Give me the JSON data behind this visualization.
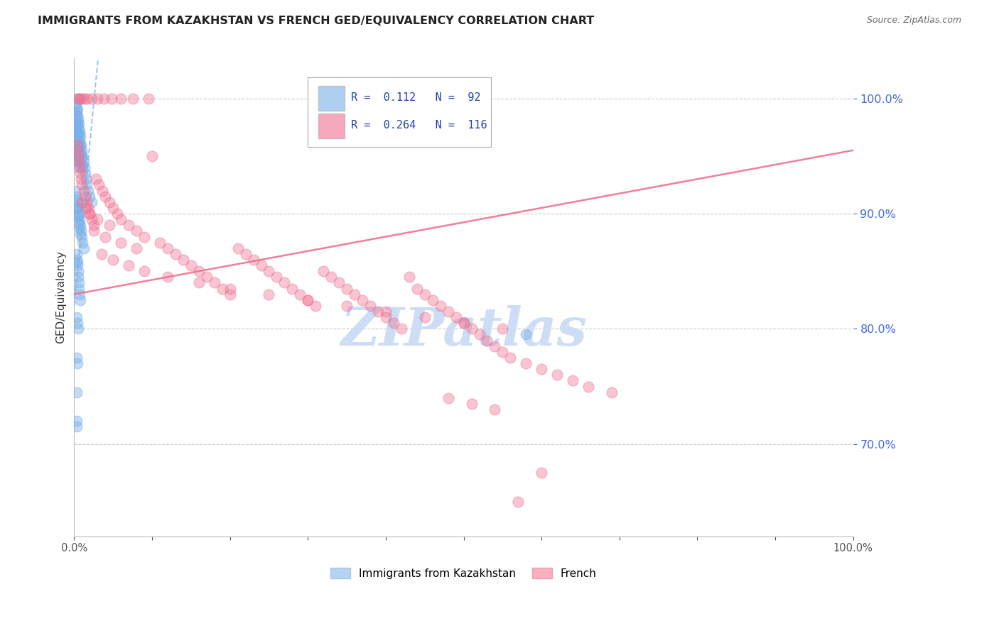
{
  "title": "IMMIGRANTS FROM KAZAKHSTAN VS FRENCH GED/EQUIVALENCY CORRELATION CHART",
  "source": "Source: ZipAtlas.com",
  "ylabel": "GED/Equivalency",
  "right_yticks": [
    100.0,
    90.0,
    80.0,
    70.0
  ],
  "legend_entries": [
    {
      "label": "Immigrants from Kazakhstan",
      "R": 0.112,
      "N": 92,
      "color": "#7ab0e8"
    },
    {
      "label": "French",
      "R": 0.264,
      "N": 116,
      "color": "#f07090"
    }
  ],
  "blue_scatter_x": [
    0.002,
    0.002,
    0.002,
    0.002,
    0.003,
    0.003,
    0.003,
    0.003,
    0.003,
    0.003,
    0.003,
    0.003,
    0.004,
    0.004,
    0.004,
    0.004,
    0.004,
    0.004,
    0.004,
    0.005,
    0.005,
    0.005,
    0.005,
    0.005,
    0.005,
    0.006,
    0.006,
    0.006,
    0.006,
    0.006,
    0.006,
    0.007,
    0.007,
    0.007,
    0.007,
    0.008,
    0.008,
    0.008,
    0.008,
    0.009,
    0.009,
    0.01,
    0.01,
    0.01,
    0.011,
    0.011,
    0.012,
    0.013,
    0.014,
    0.015,
    0.016,
    0.018,
    0.02,
    0.022,
    0.002,
    0.003,
    0.003,
    0.003,
    0.004,
    0.004,
    0.004,
    0.005,
    0.005,
    0.006,
    0.006,
    0.007,
    0.007,
    0.008,
    0.008,
    0.009,
    0.01,
    0.011,
    0.012,
    0.003,
    0.003,
    0.004,
    0.004,
    0.005,
    0.005,
    0.006,
    0.006,
    0.007,
    0.008,
    0.003,
    0.004,
    0.005,
    0.003,
    0.004,
    0.003,
    0.58,
    0.003,
    0.003
  ],
  "blue_scatter_y": [
    99.5,
    98.8,
    98.2,
    97.5,
    100.0,
    99.2,
    98.5,
    97.8,
    97.0,
    96.5,
    96.0,
    95.5,
    99.0,
    98.5,
    97.8,
    97.0,
    96.2,
    95.5,
    94.8,
    98.2,
    97.5,
    96.8,
    96.0,
    95.2,
    94.5,
    97.8,
    97.0,
    96.2,
    95.5,
    94.8,
    94.0,
    97.2,
    96.5,
    95.7,
    95.0,
    96.8,
    96.0,
    95.2,
    94.5,
    96.0,
    95.2,
    95.5,
    94.8,
    94.0,
    95.0,
    94.2,
    94.5,
    94.0,
    93.5,
    93.0,
    92.5,
    92.0,
    91.5,
    91.0,
    92.0,
    91.5,
    91.0,
    90.5,
    91.2,
    90.5,
    89.8,
    90.5,
    89.8,
    90.0,
    89.2,
    89.5,
    88.8,
    89.0,
    88.2,
    88.5,
    88.0,
    87.5,
    87.0,
    86.5,
    86.0,
    85.8,
    85.5,
    85.0,
    84.5,
    84.0,
    83.5,
    83.0,
    82.5,
    81.0,
    80.5,
    80.0,
    77.5,
    77.0,
    74.5,
    79.5,
    72.0,
    71.5
  ],
  "pink_scatter_x": [
    0.003,
    0.004,
    0.005,
    0.006,
    0.007,
    0.008,
    0.009,
    0.01,
    0.012,
    0.014,
    0.016,
    0.018,
    0.02,
    0.022,
    0.025,
    0.028,
    0.032,
    0.036,
    0.04,
    0.045,
    0.05,
    0.055,
    0.06,
    0.07,
    0.08,
    0.09,
    0.1,
    0.11,
    0.12,
    0.13,
    0.14,
    0.15,
    0.16,
    0.17,
    0.18,
    0.19,
    0.2,
    0.21,
    0.22,
    0.23,
    0.24,
    0.25,
    0.26,
    0.27,
    0.28,
    0.29,
    0.3,
    0.31,
    0.32,
    0.33,
    0.34,
    0.35,
    0.36,
    0.37,
    0.38,
    0.39,
    0.4,
    0.41,
    0.42,
    0.43,
    0.44,
    0.45,
    0.46,
    0.47,
    0.48,
    0.49,
    0.5,
    0.51,
    0.52,
    0.53,
    0.54,
    0.55,
    0.56,
    0.58,
    0.6,
    0.62,
    0.64,
    0.66,
    0.69,
    0.025,
    0.04,
    0.06,
    0.08,
    0.01,
    0.015,
    0.02,
    0.03,
    0.045,
    0.035,
    0.05,
    0.07,
    0.09,
    0.12,
    0.16,
    0.2,
    0.25,
    0.3,
    0.35,
    0.4,
    0.45,
    0.5,
    0.55,
    0.6,
    0.005,
    0.007,
    0.009,
    0.012,
    0.016,
    0.022,
    0.03,
    0.038,
    0.048,
    0.06,
    0.075,
    0.095,
    0.48,
    0.51,
    0.54,
    0.57
  ],
  "pink_scatter_y": [
    96.0,
    95.5,
    95.0,
    94.5,
    94.0,
    93.5,
    93.0,
    92.5,
    92.0,
    91.5,
    91.0,
    90.5,
    90.0,
    89.5,
    89.0,
    93.0,
    92.5,
    92.0,
    91.5,
    91.0,
    90.5,
    90.0,
    89.5,
    89.0,
    88.5,
    88.0,
    95.0,
    87.5,
    87.0,
    86.5,
    86.0,
    85.5,
    85.0,
    84.5,
    84.0,
    83.5,
    83.0,
    87.0,
    86.5,
    86.0,
    85.5,
    85.0,
    84.5,
    84.0,
    83.5,
    83.0,
    82.5,
    82.0,
    85.0,
    84.5,
    84.0,
    83.5,
    83.0,
    82.5,
    82.0,
    81.5,
    81.0,
    80.5,
    80.0,
    84.5,
    83.5,
    83.0,
    82.5,
    82.0,
    81.5,
    81.0,
    80.5,
    80.0,
    79.5,
    79.0,
    78.5,
    78.0,
    77.5,
    77.0,
    76.5,
    76.0,
    75.5,
    75.0,
    74.5,
    88.5,
    88.0,
    87.5,
    87.0,
    91.0,
    90.5,
    90.0,
    89.5,
    89.0,
    86.5,
    86.0,
    85.5,
    85.0,
    84.5,
    84.0,
    83.5,
    83.0,
    82.5,
    82.0,
    81.5,
    81.0,
    80.5,
    80.0,
    67.5,
    100.0,
    100.0,
    100.0,
    100.0,
    100.0,
    100.0,
    100.0,
    100.0,
    100.0,
    100.0,
    100.0,
    100.0,
    74.0,
    73.5,
    73.0,
    65.0
  ],
  "blue_line": {
    "x0": 0.0,
    "x1": 0.025,
    "y0": 82.0,
    "y1": 99.5
  },
  "pink_line": {
    "x0": 0.0,
    "x1": 1.0,
    "y0": 83.0,
    "y1": 95.5
  },
  "xmin": 0.0,
  "xmax": 1.0,
  "ymin": 62.0,
  "ymax": 103.5,
  "background_color": "#ffffff",
  "grid_color": "#cccccc",
  "title_color": "#222222",
  "right_axis_color": "#4169e1",
  "watermark_text": "ZIPatlas",
  "watermark_color": "#ccddf5",
  "watermark_fontsize": 54
}
